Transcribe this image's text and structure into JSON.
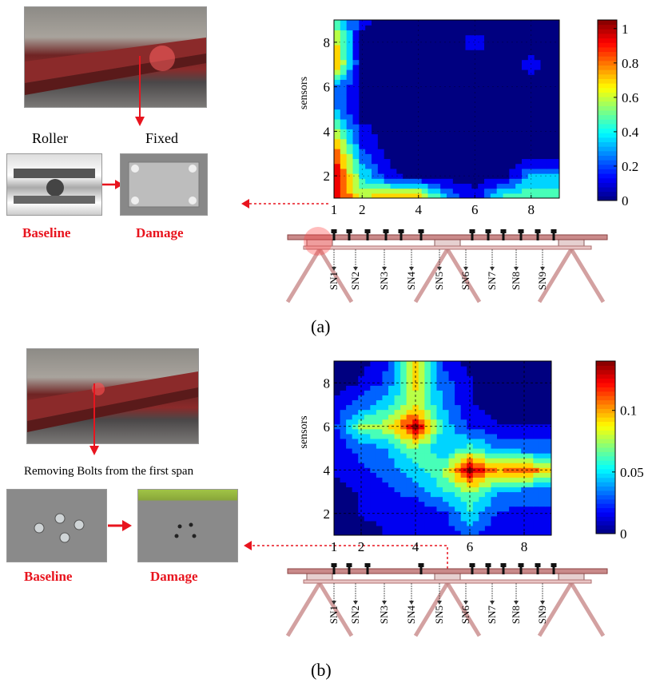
{
  "panels": [
    {
      "id": "a",
      "panel_label": "(a)",
      "left_labels": {
        "top_left": "Roller",
        "top_right": "Fixed",
        "bottom_left": "Baseline",
        "bottom_right": "Damage"
      },
      "colorbar_ticks": [
        "1",
        "0.8",
        "0.6",
        "0.4",
        "0.2",
        "0"
      ],
      "x_ticks": [
        "1",
        "2",
        "4",
        "6",
        "8"
      ],
      "y_ticks": [
        "2",
        "4",
        "6",
        "8"
      ],
      "ylabel": "sensors"
    },
    {
      "id": "b",
      "panel_label": "(b)",
      "caption": "Removing Bolts from the first span",
      "left_labels": {
        "bottom_left": "Baseline",
        "bottom_right": "Damage"
      },
      "colorbar_ticks": [
        "0.1",
        "0.05",
        "0"
      ],
      "x_ticks": [
        "1",
        "2",
        "4",
        "6",
        "8"
      ],
      "y_ticks": [
        "2",
        "4",
        "6",
        "8"
      ],
      "ylabel": "sensors"
    }
  ],
  "sensor_labels": [
    "SN1",
    "SN2",
    "SN3",
    "SN4",
    "SN5",
    "SN6",
    "SN7",
    "SN8",
    "SN9"
  ],
  "colors": {
    "accent_red": "#e8141e",
    "beam": "#c98a8a"
  },
  "chart_data": [
    {
      "type": "heatmap",
      "title": "",
      "xlabel": "",
      "ylabel": "sensors",
      "xlim": [
        1,
        9
      ],
      "ylim": [
        1,
        9
      ],
      "colorbar": [
        0,
        1.05
      ],
      "x": [
        1,
        2,
        3,
        4,
        5,
        6,
        7,
        8,
        9
      ],
      "y": [
        1,
        2,
        3,
        4,
        5,
        6,
        7,
        8,
        9
      ],
      "z": [
        [
          1.0,
          0.6,
          0.8,
          0.8,
          0.3,
          0.1,
          0.5,
          0.5,
          0.5
        ],
        [
          1.0,
          0.4,
          0.1,
          0.0,
          0.0,
          0.0,
          0.0,
          0.3,
          0.3
        ],
        [
          0.9,
          0.2,
          0.0,
          0.0,
          0.0,
          0.0,
          0.0,
          0.0,
          0.0
        ],
        [
          0.6,
          0.1,
          0.0,
          0.0,
          0.0,
          0.0,
          0.0,
          0.0,
          0.0
        ],
        [
          0.3,
          0.0,
          0.0,
          0.0,
          0.0,
          0.0,
          0.0,
          0.0,
          0.0
        ],
        [
          0.3,
          0.0,
          0.0,
          0.0,
          0.0,
          0.0,
          0.0,
          0.0,
          0.0
        ],
        [
          0.8,
          0.0,
          0.0,
          0.0,
          0.0,
          0.0,
          0.0,
          0.1,
          0.0
        ],
        [
          0.7,
          0.0,
          0.0,
          0.0,
          0.0,
          0.1,
          0.0,
          0.0,
          0.0
        ],
        [
          0.5,
          0.1,
          0.0,
          0.0,
          0.0,
          0.0,
          0.0,
          0.0,
          0.0
        ]
      ]
    },
    {
      "type": "heatmap",
      "title": "",
      "xlabel": "",
      "ylabel": "sensors",
      "xlim": [
        1,
        9
      ],
      "ylim": [
        1,
        9
      ],
      "colorbar": [
        0,
        0.14
      ],
      "x": [
        1,
        2,
        3,
        4,
        5,
        6,
        7,
        8,
        9
      ],
      "y": [
        1,
        2,
        3,
        4,
        5,
        6,
        7,
        8,
        9
      ],
      "z": [
        [
          0.0,
          0.0,
          0.01,
          0.01,
          0.01,
          0.03,
          0.01,
          0.01,
          0.01
        ],
        [
          0.0,
          0.01,
          0.01,
          0.01,
          0.02,
          0.05,
          0.02,
          0.02,
          0.02
        ],
        [
          0.0,
          0.01,
          0.02,
          0.03,
          0.05,
          0.07,
          0.04,
          0.03,
          0.03
        ],
        [
          0.01,
          0.02,
          0.03,
          0.05,
          0.07,
          0.14,
          0.1,
          0.11,
          0.09
        ],
        [
          0.01,
          0.03,
          0.04,
          0.07,
          0.04,
          0.06,
          0.04,
          0.03,
          0.03
        ],
        [
          0.02,
          0.07,
          0.08,
          0.14,
          0.05,
          0.02,
          0.01,
          0.01,
          0.01
        ],
        [
          0.01,
          0.03,
          0.05,
          0.08,
          0.04,
          0.01,
          0.0,
          0.0,
          0.0
        ],
        [
          0.0,
          0.01,
          0.03,
          0.09,
          0.03,
          0.01,
          0.0,
          0.0,
          0.0
        ],
        [
          0.0,
          0.0,
          0.02,
          0.1,
          0.02,
          0.0,
          0.0,
          0.0,
          0.0
        ]
      ]
    }
  ]
}
